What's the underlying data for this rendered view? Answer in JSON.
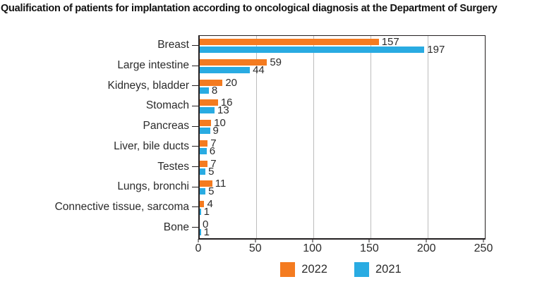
{
  "title": "Qualification of patients for implantation according to oncological diagnosis at the Department of Surgery",
  "colors": {
    "series_2022": "#F47B20",
    "series_2021": "#29ABE2",
    "gridline": "#BDBDBD",
    "axis": "#231F20",
    "text": "#2B2B2B"
  },
  "chart_data": {
    "type": "bar",
    "orientation": "horizontal",
    "title": "Qualification of patients for implantation according to oncological diagnosis at the Department of Surgery",
    "categories": [
      "Breast",
      "Large intestine",
      "Kidneys, bladder",
      "Stomach",
      "Pancreas",
      "Liver, bile ducts",
      "Testes",
      "Lungs, bronchi",
      "Connective tissue, sarcoma",
      "Bone"
    ],
    "series": [
      {
        "name": "2022",
        "color": "#F47B20",
        "values": [
          157,
          59,
          20,
          16,
          10,
          7,
          7,
          11,
          4,
          0
        ]
      },
      {
        "name": "2021",
        "color": "#29ABE2",
        "values": [
          197,
          44,
          8,
          13,
          9,
          6,
          5,
          5,
          1,
          1
        ]
      }
    ],
    "xlabel": "",
    "ylabel": "",
    "xlim": [
      0,
      250
    ],
    "xticks": [
      0,
      50,
      100,
      150,
      200,
      250
    ],
    "grid": "vertical",
    "value_labels": true,
    "legend_position": "bottom-center"
  },
  "legend": {
    "items": [
      {
        "label": "2022",
        "color": "#F47B20"
      },
      {
        "label": "2021",
        "color": "#29ABE2"
      }
    ]
  }
}
